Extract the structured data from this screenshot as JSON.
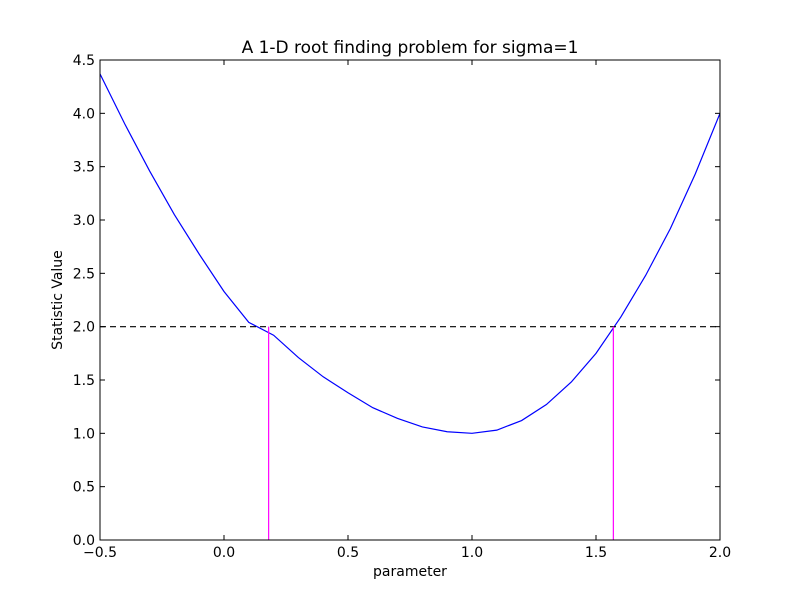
{
  "chart_data": {
    "type": "line",
    "title": "A 1-D root finding problem for sigma=1",
    "xlabel": "parameter",
    "ylabel": "Statistic Value",
    "xlim": [
      -0.5,
      2.0
    ],
    "ylim": [
      0.0,
      4.5
    ],
    "xticks": [
      -0.5,
      0.0,
      0.5,
      1.0,
      1.5,
      2.0
    ],
    "xtick_labels": [
      "−0.5",
      "0.0",
      "0.5",
      "1.0",
      "1.5",
      "2.0"
    ],
    "yticks": [
      0.0,
      0.5,
      1.0,
      1.5,
      2.0,
      2.5,
      3.0,
      3.5,
      4.0,
      4.5
    ],
    "ytick_labels": [
      "0.0",
      "0.5",
      "1.0",
      "1.5",
      "2.0",
      "2.5",
      "3.0",
      "3.5",
      "4.0",
      "4.5"
    ],
    "grid": false,
    "series": [
      {
        "color": "#0000ff",
        "style": "solid",
        "x": [
          -0.5,
          -0.4,
          -0.3,
          -0.2,
          -0.1,
          0.0,
          0.1,
          0.2,
          0.3,
          0.4,
          0.5,
          0.6,
          0.7,
          0.8,
          0.9,
          1.0,
          1.1,
          1.2,
          1.3,
          1.4,
          1.5,
          1.6,
          1.7,
          1.8,
          1.9,
          2.0
        ],
        "y": [
          4.37,
          3.9,
          3.46,
          3.05,
          2.68,
          2.33,
          2.04,
          1.92,
          1.71,
          1.53,
          1.38,
          1.24,
          1.14,
          1.06,
          1.015,
          1.0,
          1.03,
          1.12,
          1.27,
          1.48,
          1.75,
          2.09,
          2.48,
          2.92,
          3.43,
          4.0
        ]
      }
    ],
    "hlines": [
      {
        "y": 2.0,
        "color": "#000000",
        "style": "dashed"
      }
    ],
    "vlines": [
      {
        "x": 0.18,
        "y0": 0.0,
        "y1": 2.0,
        "color": "#ff00ff"
      },
      {
        "x": 1.57,
        "y0": 0.0,
        "y1": 2.0,
        "color": "#ff00ff"
      }
    ]
  }
}
